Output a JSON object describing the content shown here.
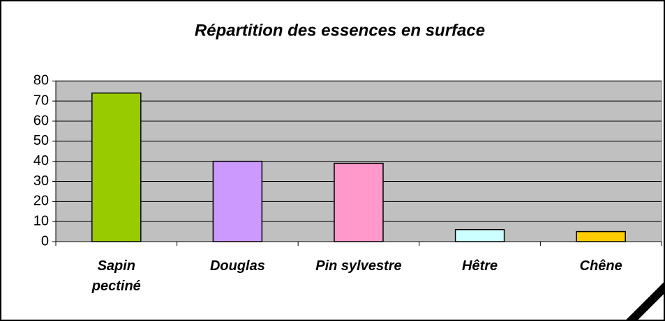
{
  "chart_data": {
    "type": "bar",
    "title": "Répartition des essences en surface",
    "categories": [
      "Sapin\npectiné",
      "Douglas",
      "Pin sylvestre",
      "Hêtre",
      "Chêne"
    ],
    "values": [
      74,
      40,
      39,
      6,
      5
    ],
    "colors": [
      "#99cc00",
      "#cc99ff",
      "#ff99cc",
      "#ccffff",
      "#ffcc00"
    ],
    "ylim": [
      0,
      80
    ],
    "yticks": [
      0,
      10,
      20,
      30,
      40,
      50,
      60,
      70,
      80
    ],
    "grid": true
  }
}
